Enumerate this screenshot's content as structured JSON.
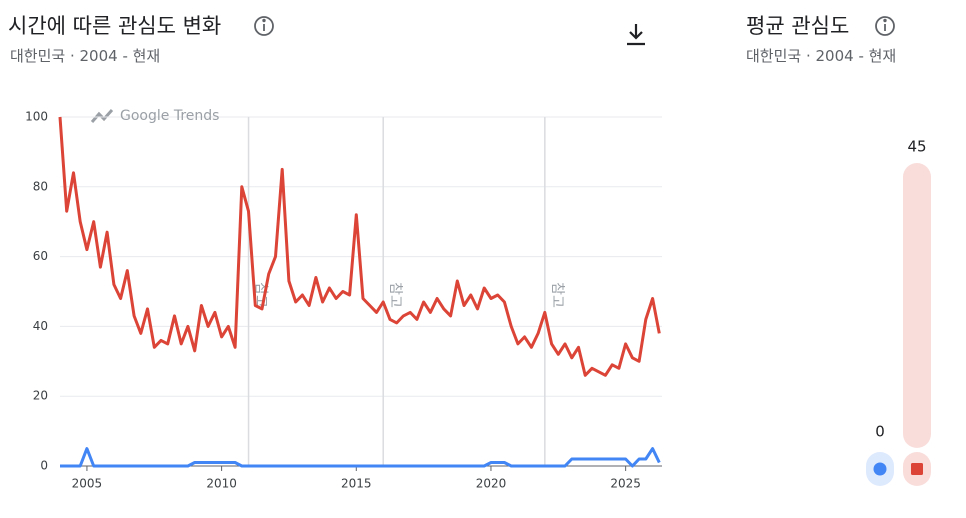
{
  "header": {
    "title": "시간에 따른 관심도 변화",
    "subtitle": "대한민국 · 2004 - 현재"
  },
  "side_header": {
    "title": "평균 관심도",
    "subtitle": "대한민국 · 2004 - 현재"
  },
  "chart_data": [
    {
      "type": "line",
      "watermark": "Google Trends",
      "x": [
        2004,
        2004.25,
        2004.5,
        2004.75,
        2005,
        2005.25,
        2005.5,
        2005.75,
        2006,
        2006.25,
        2006.5,
        2006.75,
        2007,
        2007.25,
        2007.5,
        2007.75,
        2008,
        2008.25,
        2008.5,
        2008.75,
        2009,
        2009.25,
        2009.5,
        2009.75,
        2010,
        2010.25,
        2010.5,
        2010.75,
        2011,
        2011.25,
        2011.5,
        2011.75,
        2012,
        2012.25,
        2012.5,
        2012.75,
        2013,
        2013.25,
        2013.5,
        2013.75,
        2014,
        2014.25,
        2014.5,
        2014.75,
        2015,
        2015.25,
        2015.5,
        2015.75,
        2016,
        2016.25,
        2016.5,
        2016.75,
        2017,
        2017.25,
        2017.5,
        2017.75,
        2018,
        2018.25,
        2018.5,
        2018.75,
        2019,
        2019.25,
        2019.5,
        2019.75,
        2020,
        2020.25,
        2020.5,
        2020.75,
        2021,
        2021.25,
        2021.5,
        2021.75,
        2022,
        2022.25,
        2022.5,
        2022.75,
        2023,
        2023.25,
        2023.5,
        2023.75,
        2024,
        2024.25,
        2024.5,
        2024.75,
        2025,
        2025.25,
        2025.5,
        2025.75,
        2026,
        2026.25
      ],
      "series": [
        {
          "color": "#db4437",
          "values": [
            100,
            73,
            84,
            70,
            62,
            70,
            57,
            67,
            52,
            48,
            56,
            43,
            38,
            45,
            34,
            36,
            35,
            43,
            35,
            40,
            33,
            46,
            40,
            44,
            37,
            40,
            34,
            80,
            73,
            46,
            45,
            55,
            60,
            85,
            53,
            47,
            49,
            46,
            54,
            47,
            51,
            48,
            50,
            49,
            72,
            48,
            46,
            44,
            47,
            42,
            41,
            43,
            44,
            42,
            47,
            44,
            48,
            45,
            43,
            53,
            46,
            49,
            45,
            51,
            48,
            49,
            47,
            40,
            35,
            37,
            34,
            38,
            44,
            35,
            32,
            35,
            31,
            34,
            26,
            28,
            27,
            26,
            29,
            28,
            35,
            31,
            30,
            42,
            48,
            38
          ]
        },
        {
          "color": "#4285f4",
          "values": [
            0,
            0,
            0,
            0,
            5,
            0,
            0,
            0,
            0,
            0,
            0,
            0,
            0,
            0,
            0,
            0,
            0,
            0,
            0,
            0,
            1,
            1,
            1,
            1,
            1,
            1,
            1,
            0,
            0,
            0,
            0,
            0,
            0,
            0,
            0,
            0,
            0,
            0,
            0,
            0,
            0,
            0,
            0,
            0,
            0,
            0,
            0,
            0,
            0,
            0,
            0,
            0,
            0,
            0,
            0,
            0,
            0,
            0,
            0,
            0,
            0,
            0,
            0,
            0,
            1,
            1,
            1,
            0,
            0,
            0,
            0,
            0,
            0,
            0,
            0,
            0,
            2,
            2,
            2,
            2,
            2,
            2,
            2,
            2,
            2,
            0,
            2,
            2,
            5,
            1
          ]
        }
      ],
      "xlim": [
        2004,
        2026.35
      ],
      "ylim": [
        0,
        100
      ],
      "xticks": [
        2005,
        2010,
        2015,
        2020,
        2025
      ],
      "yticks": [
        0,
        20,
        40,
        60,
        80,
        100
      ],
      "grid": true,
      "notes": [
        {
          "x": 2011,
          "label": "참고"
        },
        {
          "x": 2016,
          "label": "참고"
        },
        {
          "x": 2022,
          "label": "참고"
        }
      ]
    },
    {
      "type": "bar",
      "values": [
        0,
        45
      ],
      "colors": [
        "#4285f4",
        "#db4437"
      ]
    }
  ]
}
